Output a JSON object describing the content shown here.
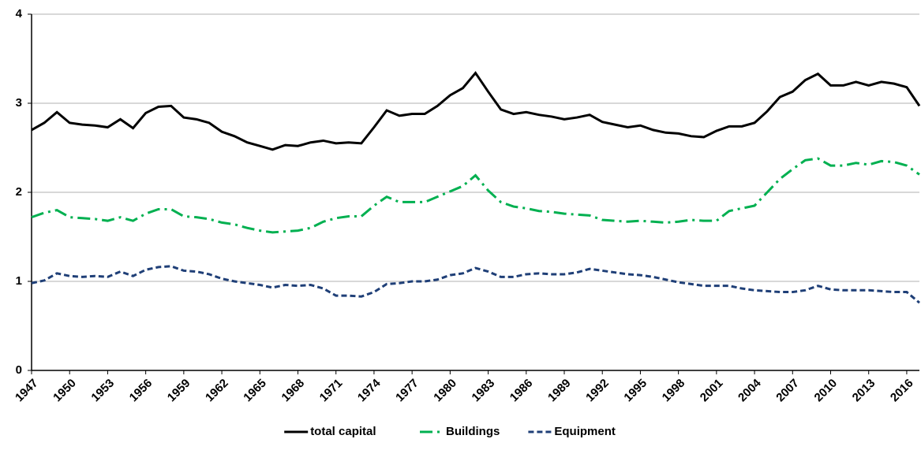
{
  "chart_data": {
    "type": "line",
    "x": [
      1947,
      1948,
      1949,
      1950,
      1951,
      1952,
      1953,
      1954,
      1955,
      1956,
      1957,
      1958,
      1959,
      1960,
      1961,
      1962,
      1963,
      1964,
      1965,
      1966,
      1967,
      1968,
      1969,
      1970,
      1971,
      1972,
      1973,
      1974,
      1975,
      1976,
      1977,
      1978,
      1979,
      1980,
      1981,
      1982,
      1983,
      1984,
      1985,
      1986,
      1987,
      1988,
      1989,
      1990,
      1991,
      1992,
      1993,
      1994,
      1995,
      1996,
      1997,
      1998,
      1999,
      2000,
      2001,
      2002,
      2003,
      2004,
      2005,
      2006,
      2007,
      2008,
      2009,
      2010,
      2011,
      2012,
      2013,
      2014,
      2015,
      2016,
      2017
    ],
    "series": [
      {
        "name": "total capital",
        "color": "#000000",
        "dash": "solid",
        "values": [
          2.7,
          2.78,
          2.9,
          2.78,
          2.76,
          2.75,
          2.73,
          2.82,
          2.72,
          2.89,
          2.96,
          2.97,
          2.84,
          2.82,
          2.78,
          2.68,
          2.63,
          2.56,
          2.52,
          2.48,
          2.53,
          2.52,
          2.56,
          2.58,
          2.55,
          2.56,
          2.55,
          2.73,
          2.92,
          2.86,
          2.88,
          2.88,
          2.97,
          3.09,
          3.17,
          3.34,
          3.13,
          2.93,
          2.88,
          2.9,
          2.87,
          2.85,
          2.82,
          2.84,
          2.87,
          2.79,
          2.76,
          2.73,
          2.75,
          2.7,
          2.67,
          2.66,
          2.63,
          2.62,
          2.69,
          2.74,
          2.74,
          2.78,
          2.91,
          3.07,
          3.13,
          3.26,
          3.33,
          3.2,
          3.2,
          3.24,
          3.2,
          3.24,
          3.22,
          3.18,
          2.97
        ]
      },
      {
        "name": "Buildings",
        "color": "#00b050",
        "dash": "dashdot",
        "values": [
          1.72,
          1.77,
          1.8,
          1.72,
          1.71,
          1.7,
          1.68,
          1.72,
          1.68,
          1.76,
          1.81,
          1.81,
          1.73,
          1.72,
          1.7,
          1.66,
          1.64,
          1.6,
          1.57,
          1.55,
          1.56,
          1.57,
          1.6,
          1.67,
          1.71,
          1.73,
          1.73,
          1.85,
          1.95,
          1.89,
          1.89,
          1.89,
          1.95,
          2.01,
          2.07,
          2.19,
          2.02,
          1.89,
          1.84,
          1.82,
          1.79,
          1.78,
          1.76,
          1.75,
          1.74,
          1.69,
          1.68,
          1.67,
          1.68,
          1.67,
          1.66,
          1.67,
          1.69,
          1.68,
          1.68,
          1.79,
          1.82,
          1.85,
          2.0,
          2.15,
          2.26,
          2.36,
          2.38,
          2.3,
          2.3,
          2.33,
          2.31,
          2.35,
          2.34,
          2.3,
          2.2
        ]
      },
      {
        "name": "Equipment",
        "color": "#1f3f77",
        "dash": "dash",
        "values": [
          0.98,
          1.01,
          1.09,
          1.06,
          1.05,
          1.06,
          1.05,
          1.11,
          1.06,
          1.13,
          1.16,
          1.17,
          1.12,
          1.11,
          1.08,
          1.03,
          1.0,
          0.98,
          0.96,
          0.93,
          0.96,
          0.95,
          0.96,
          0.92,
          0.84,
          0.84,
          0.83,
          0.88,
          0.97,
          0.98,
          1.0,
          1.0,
          1.02,
          1.07,
          1.09,
          1.15,
          1.11,
          1.05,
          1.05,
          1.08,
          1.09,
          1.08,
          1.08,
          1.1,
          1.14,
          1.12,
          1.1,
          1.08,
          1.07,
          1.05,
          1.02,
          0.99,
          0.97,
          0.95,
          0.95,
          0.95,
          0.92,
          0.9,
          0.89,
          0.88,
          0.88,
          0.9,
          0.95,
          0.91,
          0.9,
          0.9,
          0.9,
          0.89,
          0.88,
          0.88,
          0.76
        ]
      }
    ],
    "xlim": [
      1947,
      2017
    ],
    "xticks": [
      1947,
      1950,
      1953,
      1956,
      1959,
      1962,
      1965,
      1968,
      1971,
      1974,
      1977,
      1980,
      1983,
      1986,
      1989,
      1992,
      1995,
      1998,
      2001,
      2004,
      2007,
      2010,
      2013,
      2016
    ],
    "ylim": [
      0,
      4
    ],
    "yticks": [
      0,
      1,
      2,
      3,
      4
    ],
    "grid": true,
    "legend": "bottom"
  }
}
